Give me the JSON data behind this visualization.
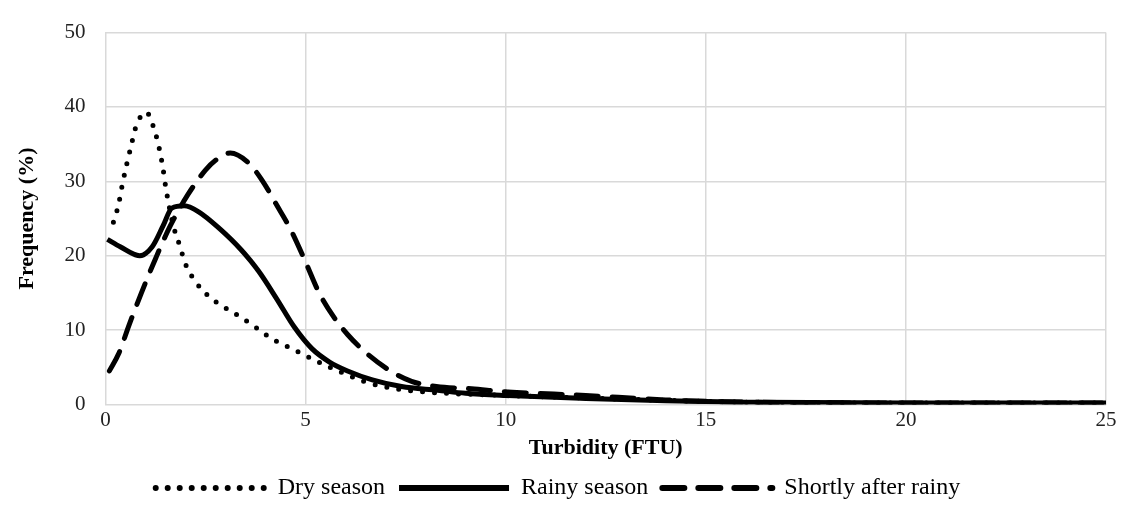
{
  "chart_data": {
    "type": "line",
    "xlabel": "Turbidity (FTU)",
    "ylabel": "Frequency (%)",
    "xlim": [
      0,
      25
    ],
    "xticks": [
      0,
      5,
      10,
      15,
      20,
      25
    ],
    "ylim": [
      0,
      50
    ],
    "yticks": [
      0,
      10,
      20,
      30,
      40,
      50
    ],
    "grid": true,
    "legend": "bottom",
    "marker": "none",
    "series": [
      {
        "name": "Dry season",
        "color": "#000000",
        "line_style": "dotted",
        "x": [
          0.2,
          0.33,
          0.42,
          0.52,
          0.64,
          0.76,
          1.02,
          1.22,
          1.35,
          1.44,
          1.51,
          1.7,
          1.86,
          2.0,
          2.24,
          2.59,
          2.96,
          3.39,
          3.8,
          4.2,
          4.66,
          5.1,
          5.52,
          5.99,
          6.45,
          6.94,
          7.5,
          8.5,
          10,
          13,
          16,
          20,
          25
        ],
        "values": [
          24.5,
          26.9,
          29.5,
          32,
          34.7,
          37.3,
          39.3,
          37,
          34.3,
          31.7,
          29.1,
          24,
          21.3,
          18.9,
          16.6,
          14.5,
          13.1,
          11.7,
          10.2,
          8.7,
          7.5,
          6.3,
          5.2,
          4.1,
          3.1,
          2.4,
          1.9,
          1.5,
          1.2,
          0.7,
          0.3,
          0.2,
          0.2
        ]
      },
      {
        "name": "Rainy season",
        "color": "#000000",
        "line_style": "solid",
        "x": [
          0.05,
          0.37,
          0.86,
          1.17,
          1.44,
          1.66,
          1.97,
          2.33,
          2.86,
          3.39,
          3.83,
          4.28,
          4.72,
          5.16,
          5.6,
          6.05,
          6.67,
          7.4,
          8.3,
          9,
          10,
          12,
          14,
          16,
          20,
          25
        ],
        "values": [
          22.2,
          21.2,
          20,
          21.2,
          24,
          26.4,
          26.7,
          25.9,
          23.6,
          20.8,
          17.9,
          14.2,
          10.4,
          7.5,
          5.7,
          4.5,
          3.3,
          2.4,
          1.9,
          1.5,
          1.2,
          0.8,
          0.5,
          0.3,
          0.2,
          0.2
        ]
      },
      {
        "name": "Shortly after rainy",
        "color": "#000000",
        "line_style": "dashed",
        "x": [
          0.1,
          0.33,
          0.6,
          0.9,
          1.26,
          1.62,
          2.06,
          2.5,
          2.77,
          3.12,
          3.57,
          3.92,
          4.28,
          4.63,
          4.99,
          5.34,
          5.7,
          6.05,
          6.5,
          7.12,
          7.65,
          8.27,
          9.15,
          10,
          12,
          14,
          16,
          20,
          25
        ],
        "values": [
          4.5,
          6.8,
          10.8,
          15,
          19.7,
          24,
          28.2,
          31.5,
          32.9,
          33.8,
          32.5,
          30.1,
          26.8,
          23.5,
          19.3,
          15,
          11.8,
          9.4,
          7,
          4.5,
          3.1,
          2.4,
          2.1,
          1.7,
          1.2,
          0.6,
          0.3,
          0.2,
          0.2
        ]
      }
    ]
  }
}
